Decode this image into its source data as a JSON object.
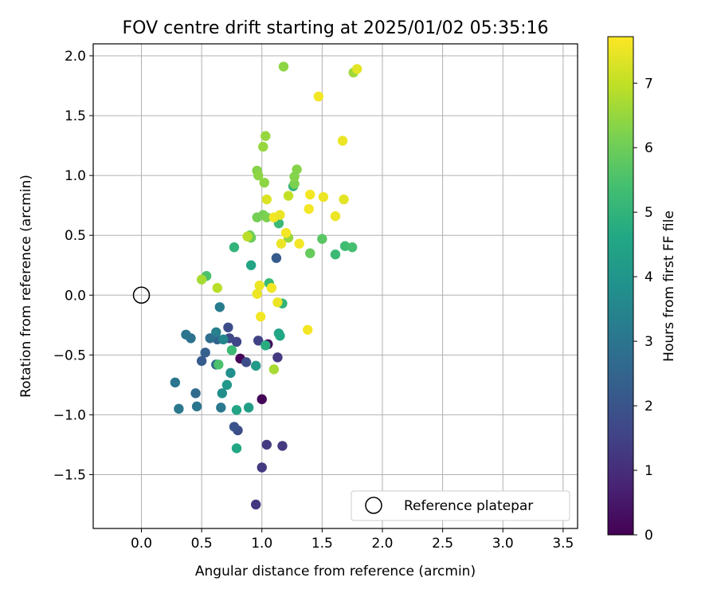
{
  "chart_data": {
    "type": "scatter",
    "title": "FOV centre drift starting at 2025/01/02 05:35:16",
    "xlabel": "Angular distance from reference (arcmin)",
    "ylabel": "Rotation from reference (arcmin)",
    "xlim": [
      -0.4,
      3.62
    ],
    "ylim": [
      -1.95,
      2.1
    ],
    "x_ticks": [
      0.0,
      0.5,
      1.0,
      1.5,
      2.0,
      2.5,
      3.0,
      3.5
    ],
    "x_tick_labels": [
      "0.0",
      "0.5",
      "1.0",
      "1.5",
      "2.0",
      "2.5",
      "3.0",
      "3.5"
    ],
    "y_ticks": [
      -1.5,
      -1.0,
      -0.5,
      0.0,
      0.5,
      1.0,
      1.5,
      2.0
    ],
    "y_tick_labels": [
      "−1.5",
      "−1.0",
      "−0.5",
      "0.0",
      "0.5",
      "1.0",
      "1.5",
      "2.0"
    ],
    "grid": true,
    "legend": {
      "position": "lower-right",
      "label": "Reference platepar"
    },
    "reference_point": {
      "x": 0.0,
      "y": 0.0
    },
    "colorbar": {
      "label": "Hours from first FF file",
      "colormap": "viridis",
      "range": [
        0,
        7.72
      ],
      "ticks": [
        0,
        1,
        2,
        3,
        4,
        5,
        6,
        7
      ],
      "tick_labels": [
        "0",
        "1",
        "2",
        "3",
        "4",
        "5",
        "6",
        "7"
      ]
    },
    "points": [
      {
        "x": 1.0,
        "y": -0.87,
        "c": 0.1
      },
      {
        "x": 0.82,
        "y": -0.53,
        "c": 0.1
      },
      {
        "x": 1.05,
        "y": -0.41,
        "c": 0.2
      },
      {
        "x": 0.95,
        "y": -1.75,
        "c": 1.2
      },
      {
        "x": 1.0,
        "y": -1.44,
        "c": 1.3
      },
      {
        "x": 1.04,
        "y": -1.25,
        "c": 1.3
      },
      {
        "x": 1.17,
        "y": -1.26,
        "c": 1.3
      },
      {
        "x": 1.13,
        "y": -0.52,
        "c": 1.3
      },
      {
        "x": 0.97,
        "y": -0.38,
        "c": 1.5
      },
      {
        "x": 0.79,
        "y": -0.39,
        "c": 1.6
      },
      {
        "x": 0.73,
        "y": -0.36,
        "c": 1.7
      },
      {
        "x": 0.72,
        "y": -0.27,
        "c": 1.8
      },
      {
        "x": 0.87,
        "y": -0.56,
        "c": 1.8
      },
      {
        "x": 0.8,
        "y": -1.13,
        "c": 1.8
      },
      {
        "x": 0.77,
        "y": -1.1,
        "c": 2.0
      },
      {
        "x": 1.12,
        "y": 0.31,
        "c": 2.2
      },
      {
        "x": 0.5,
        "y": -0.55,
        "c": 2.2
      },
      {
        "x": 0.53,
        "y": -0.48,
        "c": 2.4
      },
      {
        "x": 0.63,
        "y": -0.37,
        "c": 2.5
      },
      {
        "x": 0.62,
        "y": -0.58,
        "c": 2.6
      },
      {
        "x": 0.45,
        "y": -0.82,
        "c": 2.7
      },
      {
        "x": 0.57,
        "y": -0.36,
        "c": 2.8
      },
      {
        "x": 0.41,
        "y": -0.36,
        "c": 2.9
      },
      {
        "x": 0.37,
        "y": -0.33,
        "c": 3.0
      },
      {
        "x": 0.28,
        "y": -0.73,
        "c": 3.0
      },
      {
        "x": 0.46,
        "y": -0.93,
        "c": 3.0
      },
      {
        "x": 0.31,
        "y": -0.95,
        "c": 3.1
      },
      {
        "x": 0.66,
        "y": -0.94,
        "c": 3.1
      },
      {
        "x": 0.65,
        "y": -0.1,
        "c": 3.2
      },
      {
        "x": 0.62,
        "y": -0.31,
        "c": 3.3
      },
      {
        "x": 0.68,
        "y": -0.37,
        "c": 3.5
      },
      {
        "x": 0.67,
        "y": -0.82,
        "c": 3.8
      },
      {
        "x": 0.74,
        "y": -0.65,
        "c": 3.8
      },
      {
        "x": 0.71,
        "y": -0.75,
        "c": 4.1
      },
      {
        "x": 0.95,
        "y": -0.59,
        "c": 4.2
      },
      {
        "x": 0.89,
        "y": -0.94,
        "c": 4.3
      },
      {
        "x": 0.79,
        "y": -0.96,
        "c": 4.5
      },
      {
        "x": 0.79,
        "y": -1.28,
        "c": 4.6
      },
      {
        "x": 0.91,
        "y": 0.25,
        "c": 4.5
      },
      {
        "x": 1.14,
        "y": -0.32,
        "c": 4.5
      },
      {
        "x": 1.15,
        "y": -0.34,
        "c": 4.6
      },
      {
        "x": 1.03,
        "y": -0.42,
        "c": 4.8
      },
      {
        "x": 1.17,
        "y": -0.07,
        "c": 5.0
      },
      {
        "x": 0.77,
        "y": 0.4,
        "c": 5.0
      },
      {
        "x": 1.06,
        "y": 0.1,
        "c": 5.2
      },
      {
        "x": 1.14,
        "y": 0.6,
        "c": 5.2
      },
      {
        "x": 0.75,
        "y": -0.46,
        "c": 5.2
      },
      {
        "x": 1.26,
        "y": 0.91,
        "c": 5.0
      },
      {
        "x": 1.61,
        "y": 0.34,
        "c": 5.2
      },
      {
        "x": 1.69,
        "y": 0.41,
        "c": 5.3
      },
      {
        "x": 1.75,
        "y": 0.4,
        "c": 5.4
      },
      {
        "x": 0.54,
        "y": 0.16,
        "c": 5.5
      },
      {
        "x": 0.64,
        "y": -0.58,
        "c": 5.5
      },
      {
        "x": 1.5,
        "y": 0.47,
        "c": 5.7
      },
      {
        "x": 1.4,
        "y": 0.35,
        "c": 5.9
      },
      {
        "x": 0.9,
        "y": 0.5,
        "c": 6.0
      },
      {
        "x": 0.91,
        "y": 0.48,
        "c": 6.0
      },
      {
        "x": 0.96,
        "y": 0.65,
        "c": 6.1
      },
      {
        "x": 1.01,
        "y": 0.67,
        "c": 6.1
      },
      {
        "x": 1.04,
        "y": 0.65,
        "c": 6.2
      },
      {
        "x": 1.27,
        "y": 0.93,
        "c": 6.2
      },
      {
        "x": 1.27,
        "y": 0.99,
        "c": 6.3
      },
      {
        "x": 1.29,
        "y": 1.05,
        "c": 6.3
      },
      {
        "x": 0.96,
        "y": 1.04,
        "c": 6.3
      },
      {
        "x": 0.97,
        "y": 1.0,
        "c": 6.4
      },
      {
        "x": 1.02,
        "y": 0.94,
        "c": 6.4
      },
      {
        "x": 1.01,
        "y": 1.24,
        "c": 6.5
      },
      {
        "x": 1.03,
        "y": 1.33,
        "c": 6.5
      },
      {
        "x": 1.18,
        "y": 1.91,
        "c": 6.4
      },
      {
        "x": 1.76,
        "y": 1.86,
        "c": 6.6
      },
      {
        "x": 1.22,
        "y": 0.48,
        "c": 6.5
      },
      {
        "x": 1.1,
        "y": -0.62,
        "c": 6.7
      },
      {
        "x": 0.5,
        "y": 0.13,
        "c": 6.7
      },
      {
        "x": 0.63,
        "y": 0.06,
        "c": 6.9
      },
      {
        "x": 0.88,
        "y": 0.49,
        "c": 6.9
      },
      {
        "x": 1.22,
        "y": 0.83,
        "c": 7.0
      },
      {
        "x": 1.79,
        "y": 1.89,
        "c": 7.4
      },
      {
        "x": 1.47,
        "y": 1.66,
        "c": 7.6
      },
      {
        "x": 1.67,
        "y": 1.29,
        "c": 7.5
      },
      {
        "x": 1.4,
        "y": 0.84,
        "c": 7.6
      },
      {
        "x": 1.51,
        "y": 0.82,
        "c": 7.5
      },
      {
        "x": 1.68,
        "y": 0.8,
        "c": 7.4
      },
      {
        "x": 1.04,
        "y": 0.8,
        "c": 7.3
      },
      {
        "x": 1.39,
        "y": 0.72,
        "c": 7.6
      },
      {
        "x": 1.61,
        "y": 0.66,
        "c": 7.5
      },
      {
        "x": 1.1,
        "y": 0.65,
        "c": 7.6
      },
      {
        "x": 1.15,
        "y": 0.67,
        "c": 7.5
      },
      {
        "x": 1.2,
        "y": 0.52,
        "c": 7.6
      },
      {
        "x": 1.31,
        "y": 0.43,
        "c": 7.6
      },
      {
        "x": 1.16,
        "y": 0.43,
        "c": 7.5
      },
      {
        "x": 0.98,
        "y": 0.08,
        "c": 7.5
      },
      {
        "x": 1.08,
        "y": 0.06,
        "c": 7.6
      },
      {
        "x": 0.96,
        "y": 0.01,
        "c": 7.5
      },
      {
        "x": 1.13,
        "y": -0.06,
        "c": 7.5
      },
      {
        "x": 0.99,
        "y": -0.18,
        "c": 7.6
      },
      {
        "x": 1.38,
        "y": -0.29,
        "c": 7.6
      }
    ]
  }
}
